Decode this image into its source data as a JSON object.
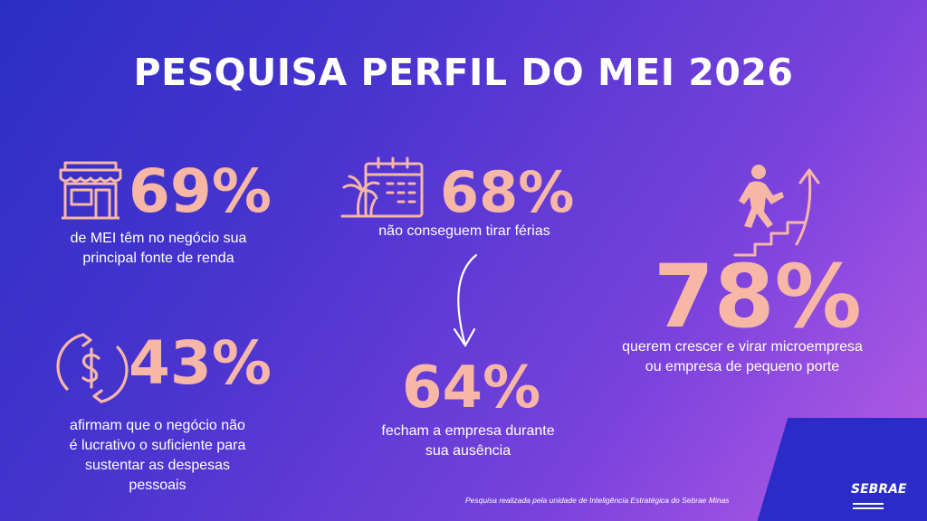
{
  "title": "PESQUISA PERFIL DO MEI 2026",
  "stats": {
    "main_income": {
      "value": "69%",
      "text_line1": "de MEI têm no negócio sua",
      "text_line2": "principal fonte de renda",
      "icon": "storefront-icon"
    },
    "no_vacation": {
      "value": "68%",
      "text_line1": "não conseguem tirar férias",
      "icon": "calendar-palm-icon"
    },
    "close_business": {
      "value": "64%",
      "text_line1": "fecham a empresa durante",
      "text_line2": "sua ausência",
      "icon": "curved-arrow-icon"
    },
    "not_profitable": {
      "value": "43%",
      "text_line1": "afirmam que o negócio não",
      "text_line2": "é lucrativo o suficiente para",
      "text_line3": "sustentar as despesas",
      "text_line4": "pessoais",
      "icon": "dollar-cycle-icon"
    },
    "want_grow": {
      "value": "78%",
      "text_line1": "querem crescer e virar microempresa",
      "text_line2": "ou empresa de pequeno porte",
      "icon": "person-stairs-growth-icon"
    }
  },
  "footer": {
    "note": "Pesquisa realizada pela unidade de Inteligência Estratégica do Sebrae Minas",
    "logo": "SEBRAE"
  },
  "colors": {
    "accent": "#f6b7a6",
    "background_start": "#2a2fc4",
    "background_end": "#b85de6"
  }
}
